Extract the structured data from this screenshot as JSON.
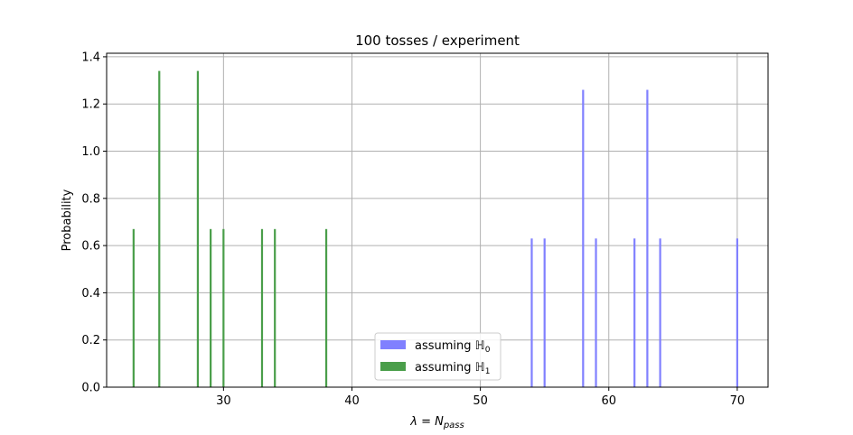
{
  "chart_data": {
    "type": "bar",
    "title": "100 tosses / experiment",
    "xlabel": "λ = N",
    "xlabel_sub": "pass",
    "ylabel": "Probability",
    "xlim": [
      20.9,
      72.4
    ],
    "ylim": [
      0,
      1.415
    ],
    "xticks": [
      30,
      40,
      50,
      60,
      70
    ],
    "yticks": [
      0.0,
      0.2,
      0.4,
      0.6,
      0.8,
      1.0,
      1.2,
      1.4
    ],
    "grid": true,
    "legend_position": "lower-center",
    "series": [
      {
        "name": "assuming ℍ",
        "name_sub": "0",
        "color": "#8080ff",
        "x": [
          54,
          55,
          58,
          59,
          62,
          63,
          64,
          70
        ],
        "values": [
          0.63,
          0.63,
          1.26,
          0.63,
          0.63,
          1.26,
          0.63,
          0.63
        ]
      },
      {
        "name": "assuming ℍ",
        "name_sub": "1",
        "color": "#4a9e4a",
        "x": [
          23,
          25,
          28,
          29,
          30,
          33,
          34,
          38
        ],
        "values": [
          0.67,
          1.34,
          1.34,
          0.67,
          0.67,
          0.67,
          0.67,
          0.67
        ]
      }
    ]
  }
}
